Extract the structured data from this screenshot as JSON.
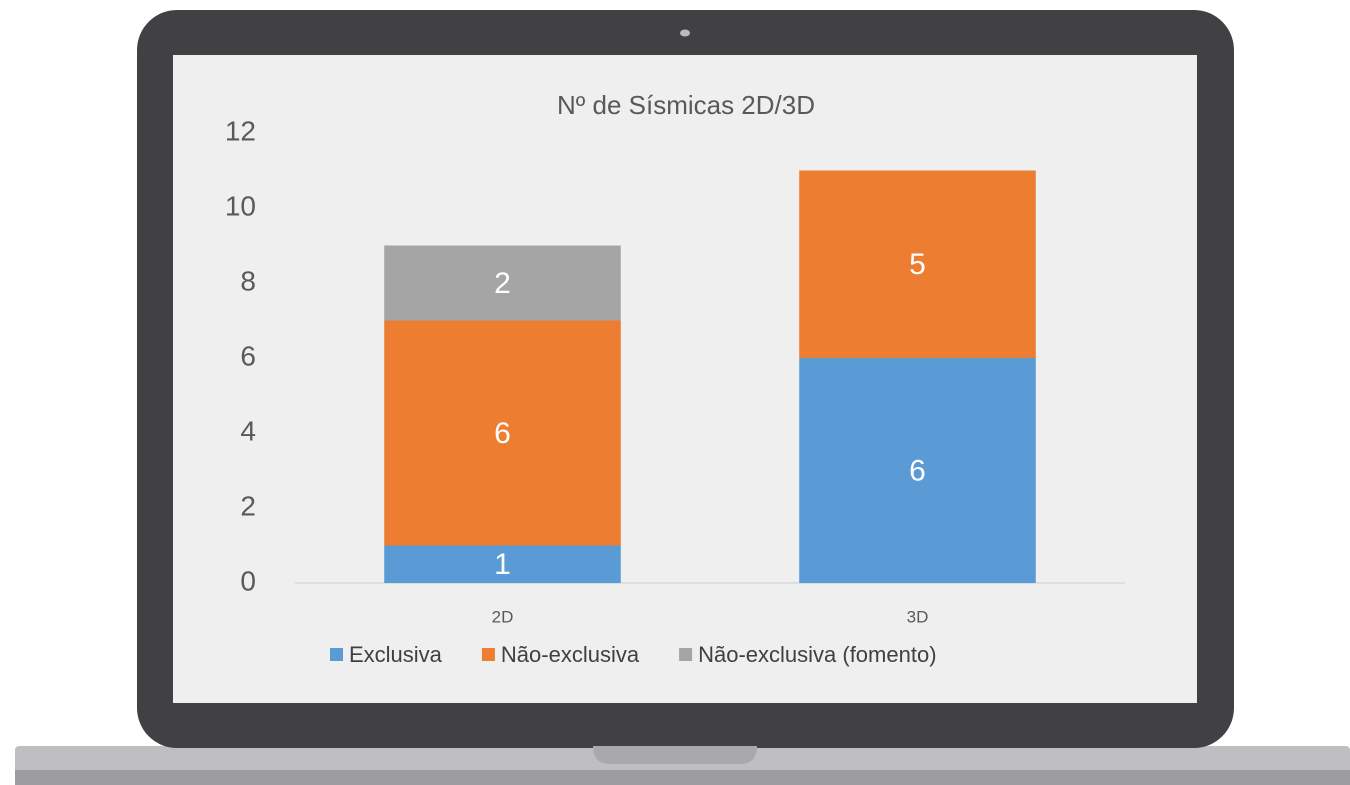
{
  "chart_data": {
    "type": "stacked_bar",
    "title": "Nº de Sísmicas 2D/3D",
    "categories": [
      "2D",
      "3D"
    ],
    "series": [
      {
        "name": "Exclusiva",
        "color": "#5b9bd5",
        "values": [
          1,
          6
        ]
      },
      {
        "name": "Não-exclusiva",
        "color": "#ed7d31",
        "values": [
          6,
          5
        ]
      },
      {
        "name": "Não-exclusiva (fomento)",
        "color": "#a5a5a5",
        "values": [
          2,
          null
        ]
      }
    ],
    "ylim": [
      0,
      12
    ],
    "yticks": [
      0,
      2,
      4,
      6,
      8,
      10,
      12
    ],
    "grid": false,
    "legend": "bottom"
  }
}
